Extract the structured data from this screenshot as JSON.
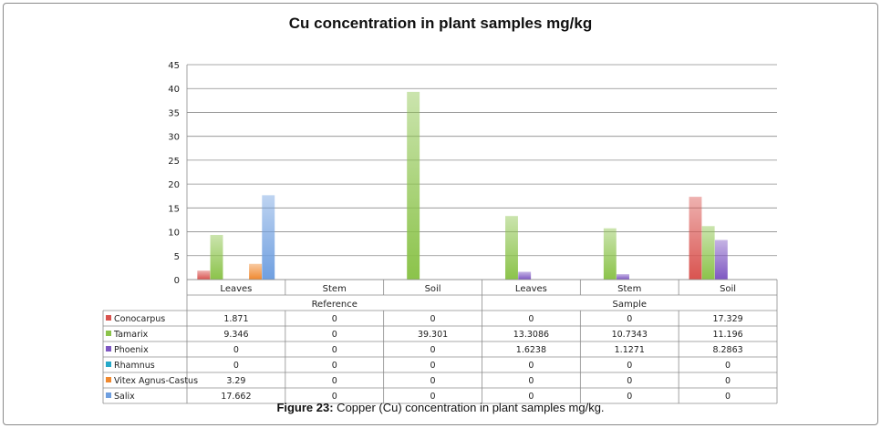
{
  "chart_data": {
    "type": "bar",
    "title": "Cu concentration in plant samples mg/kg",
    "ylim": [
      0,
      45
    ],
    "yticks": [
      "0",
      "5",
      "10",
      "15",
      "20",
      "25",
      "30",
      "35",
      "40",
      "45"
    ],
    "groups": [
      {
        "label": "Reference",
        "categories": [
          "Leaves",
          "Stem",
          "Soil"
        ]
      },
      {
        "label": "Sample",
        "categories": [
          "Leaves",
          "Stem",
          "Soil"
        ]
      }
    ],
    "categories": [
      "Leaves",
      "Stem",
      "Soil",
      "Leaves",
      "Stem",
      "Soil"
    ],
    "series": [
      {
        "name": "Conocarpus",
        "color": "#d9534f",
        "values": [
          1.871,
          0,
          0,
          0,
          0,
          17.329
        ],
        "labels": [
          "1.871",
          "0",
          "0",
          "0",
          "0",
          "17.329"
        ]
      },
      {
        "name": "Tamarix",
        "color": "#8bc34a",
        "values": [
          9.346,
          0,
          39.301,
          13.3086,
          10.7343,
          11.196
        ],
        "labels": [
          "9.346",
          "0",
          "39.301",
          "13.3086",
          "10.7343",
          "11.196"
        ]
      },
      {
        "name": "Phoenix",
        "color": "#7e57c2",
        "values": [
          0,
          0,
          0,
          1.6238,
          1.1271,
          8.2863
        ],
        "labels": [
          "0",
          "0",
          "0",
          "1.6238",
          "1.1271",
          "8.2863"
        ]
      },
      {
        "name": "Rhamnus",
        "color": "#26a9c9",
        "values": [
          0,
          0,
          0,
          0,
          0,
          0
        ],
        "labels": [
          "0",
          "0",
          "0",
          "0",
          "0",
          "0"
        ]
      },
      {
        "name": "Vitex Agnus-Castus",
        "color": "#f0892f",
        "values": [
          3.29,
          0,
          0,
          0,
          0,
          0
        ],
        "labels": [
          "3.29",
          "0",
          "0",
          "0",
          "0",
          "0"
        ]
      },
      {
        "name": "Salix",
        "color": "#6f9fe0",
        "values": [
          17.662,
          0,
          0,
          0,
          0,
          0
        ],
        "labels": [
          "17.662",
          "0",
          "0",
          "0",
          "0",
          "0"
        ]
      }
    ]
  },
  "caption": {
    "figure_label": "Figure 23:",
    "text": " Copper (Cu) concentration in plant samples mg/kg."
  }
}
